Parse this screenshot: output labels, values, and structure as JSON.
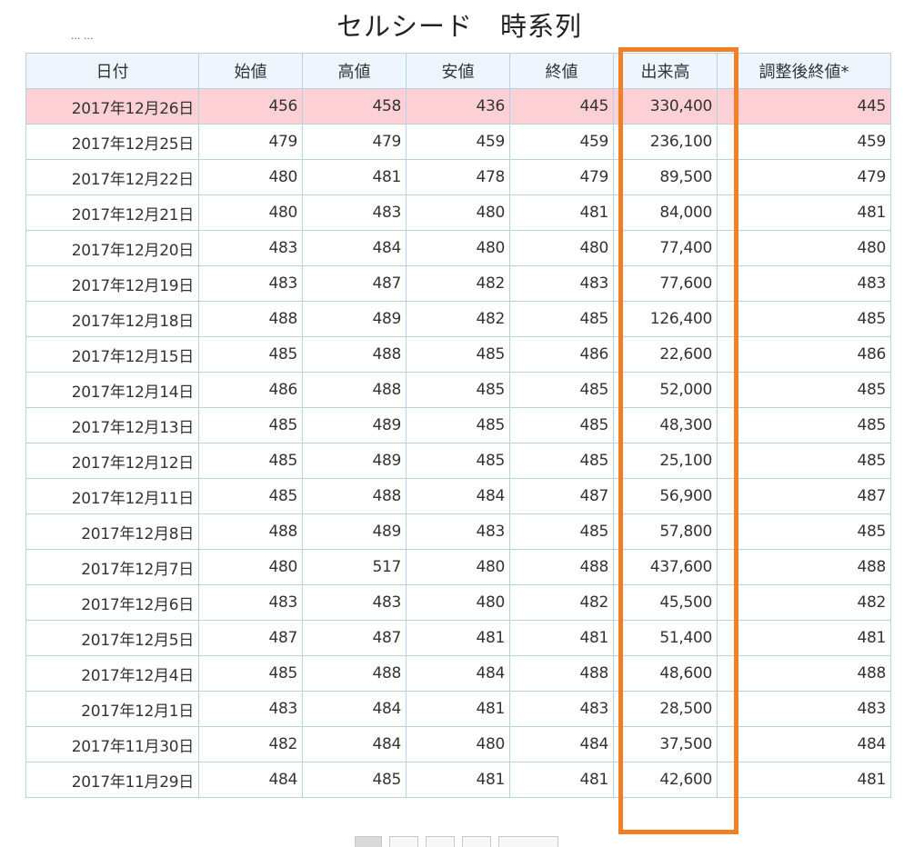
{
  "page": {
    "title": "セルシード　時系列"
  },
  "table": {
    "headers": [
      "日付",
      "始値",
      "高値",
      "安値",
      "終値",
      "出来高",
      "調整後終値*"
    ],
    "rows": [
      [
        "2017年12月26日",
        "456",
        "458",
        "436",
        "445",
        "330,400",
        "445"
      ],
      [
        "2017年12月25日",
        "479",
        "479",
        "459",
        "459",
        "236,100",
        "459"
      ],
      [
        "2017年12月22日",
        "480",
        "481",
        "478",
        "479",
        "89,500",
        "479"
      ],
      [
        "2017年12月21日",
        "480",
        "483",
        "480",
        "481",
        "84,000",
        "481"
      ],
      [
        "2017年12月20日",
        "483",
        "484",
        "480",
        "480",
        "77,400",
        "480"
      ],
      [
        "2017年12月19日",
        "483",
        "487",
        "482",
        "483",
        "77,600",
        "483"
      ],
      [
        "2017年12月18日",
        "488",
        "489",
        "482",
        "485",
        "126,400",
        "485"
      ],
      [
        "2017年12月15日",
        "485",
        "488",
        "485",
        "486",
        "22,600",
        "486"
      ],
      [
        "2017年12月14日",
        "486",
        "488",
        "485",
        "485",
        "52,000",
        "485"
      ],
      [
        "2017年12月13日",
        "485",
        "489",
        "485",
        "485",
        "48,300",
        "485"
      ],
      [
        "2017年12月12日",
        "485",
        "489",
        "485",
        "485",
        "25,100",
        "485"
      ],
      [
        "2017年12月11日",
        "485",
        "488",
        "484",
        "487",
        "56,900",
        "487"
      ],
      [
        "2017年12月8日",
        "488",
        "489",
        "483",
        "485",
        "57,800",
        "485"
      ],
      [
        "2017年12月7日",
        "480",
        "517",
        "480",
        "488",
        "437,600",
        "488"
      ],
      [
        "2017年12月6日",
        "483",
        "483",
        "480",
        "482",
        "45,500",
        "482"
      ],
      [
        "2017年12月5日",
        "487",
        "487",
        "481",
        "481",
        "51,400",
        "481"
      ],
      [
        "2017年12月4日",
        "485",
        "488",
        "484",
        "488",
        "48,600",
        "488"
      ],
      [
        "2017年12月1日",
        "483",
        "484",
        "481",
        "483",
        "28,500",
        "483"
      ],
      [
        "2017年11月30日",
        "482",
        "484",
        "480",
        "484",
        "37,500",
        "484"
      ],
      [
        "2017年11月29日",
        "484",
        "485",
        "481",
        "481",
        "42,600",
        "481"
      ]
    ]
  },
  "colors": {
    "highlight_row": "#fdd0d6",
    "header_bg": "#eef5fd",
    "annotation_box": "#f07f25",
    "border": "#b9d1e4"
  }
}
